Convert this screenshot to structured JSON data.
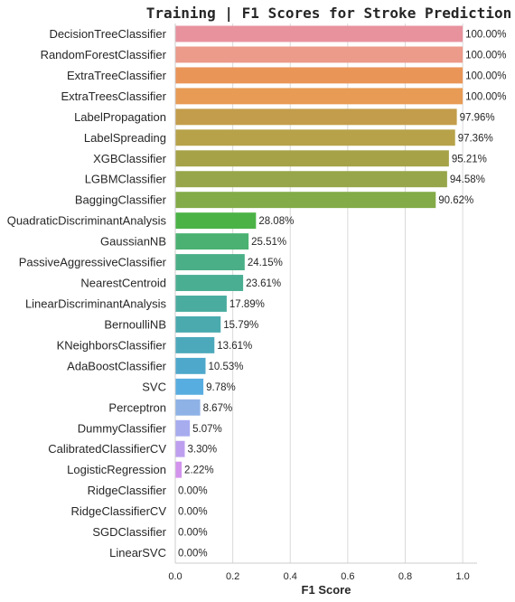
{
  "chart_data": {
    "type": "bar",
    "orientation": "horizontal",
    "title": "Training | F1 Scores for Stroke Prediction",
    "xlabel": "F1 Score",
    "ylabel": "",
    "xlim": [
      0,
      1.05
    ],
    "xticks": [
      "0.0",
      "0.2",
      "0.4",
      "0.6",
      "0.8",
      "1.0"
    ],
    "grid": "vertical",
    "categories": [
      "DecisionTreeClassifier",
      "RandomForestClassifier",
      "ExtraTreeClassifier",
      "ExtraTreesClassifier",
      "LabelPropagation",
      "LabelSpreading",
      "XGBClassifier",
      "LGBMClassifier",
      "BaggingClassifier",
      "QuadraticDiscriminantAnalysis",
      "GaussianNB",
      "PassiveAggressiveClassifier",
      "NearestCentroid",
      "LinearDiscriminantAnalysis",
      "BernoulliNB",
      "KNeighborsClassifier",
      "AdaBoostClassifier",
      "SVC",
      "Perceptron",
      "DummyClassifier",
      "CalibratedClassifierCV",
      "LogisticRegression",
      "RidgeClassifier",
      "RidgeClassifierCV",
      "SGDClassifier",
      "LinearSVC"
    ],
    "values": [
      1.0,
      1.0,
      1.0,
      1.0,
      0.9796,
      0.9736,
      0.9521,
      0.9458,
      0.9062,
      0.2808,
      0.2551,
      0.2415,
      0.2361,
      0.1789,
      0.1579,
      0.1361,
      0.1053,
      0.0978,
      0.0867,
      0.0507,
      0.033,
      0.0222,
      0.0,
      0.0,
      0.0,
      0.0
    ],
    "labels": [
      "100.00%",
      "100.00%",
      "100.00%",
      "100.00%",
      "97.96%",
      "97.36%",
      "95.21%",
      "94.58%",
      "90.62%",
      "28.08%",
      "25.51%",
      "24.15%",
      "23.61%",
      "17.89%",
      "15.79%",
      "13.61%",
      "10.53%",
      "9.78%",
      "8.67%",
      "5.07%",
      "3.30%",
      "2.22%",
      "0.00%",
      "0.00%",
      "0.00%",
      "0.00%"
    ],
    "colors": [
      "#e8929e",
      "#ec9a8a",
      "#ea9558",
      "#e79b54",
      "#c39d4b",
      "#b7a24a",
      "#a5a248",
      "#97a64a",
      "#83ab47",
      "#4bb346",
      "#4ab172",
      "#4aaf87",
      "#4aae93",
      "#4aac9f",
      "#4aaaae",
      "#4ca9bb",
      "#4ea8cc",
      "#58ade0",
      "#8eb2e6",
      "#a7acef",
      "#be9fef",
      "#d394ed",
      "#e38ee4",
      "#eb8fd0",
      "#ec90bd",
      "#ec93ab"
    ]
  }
}
